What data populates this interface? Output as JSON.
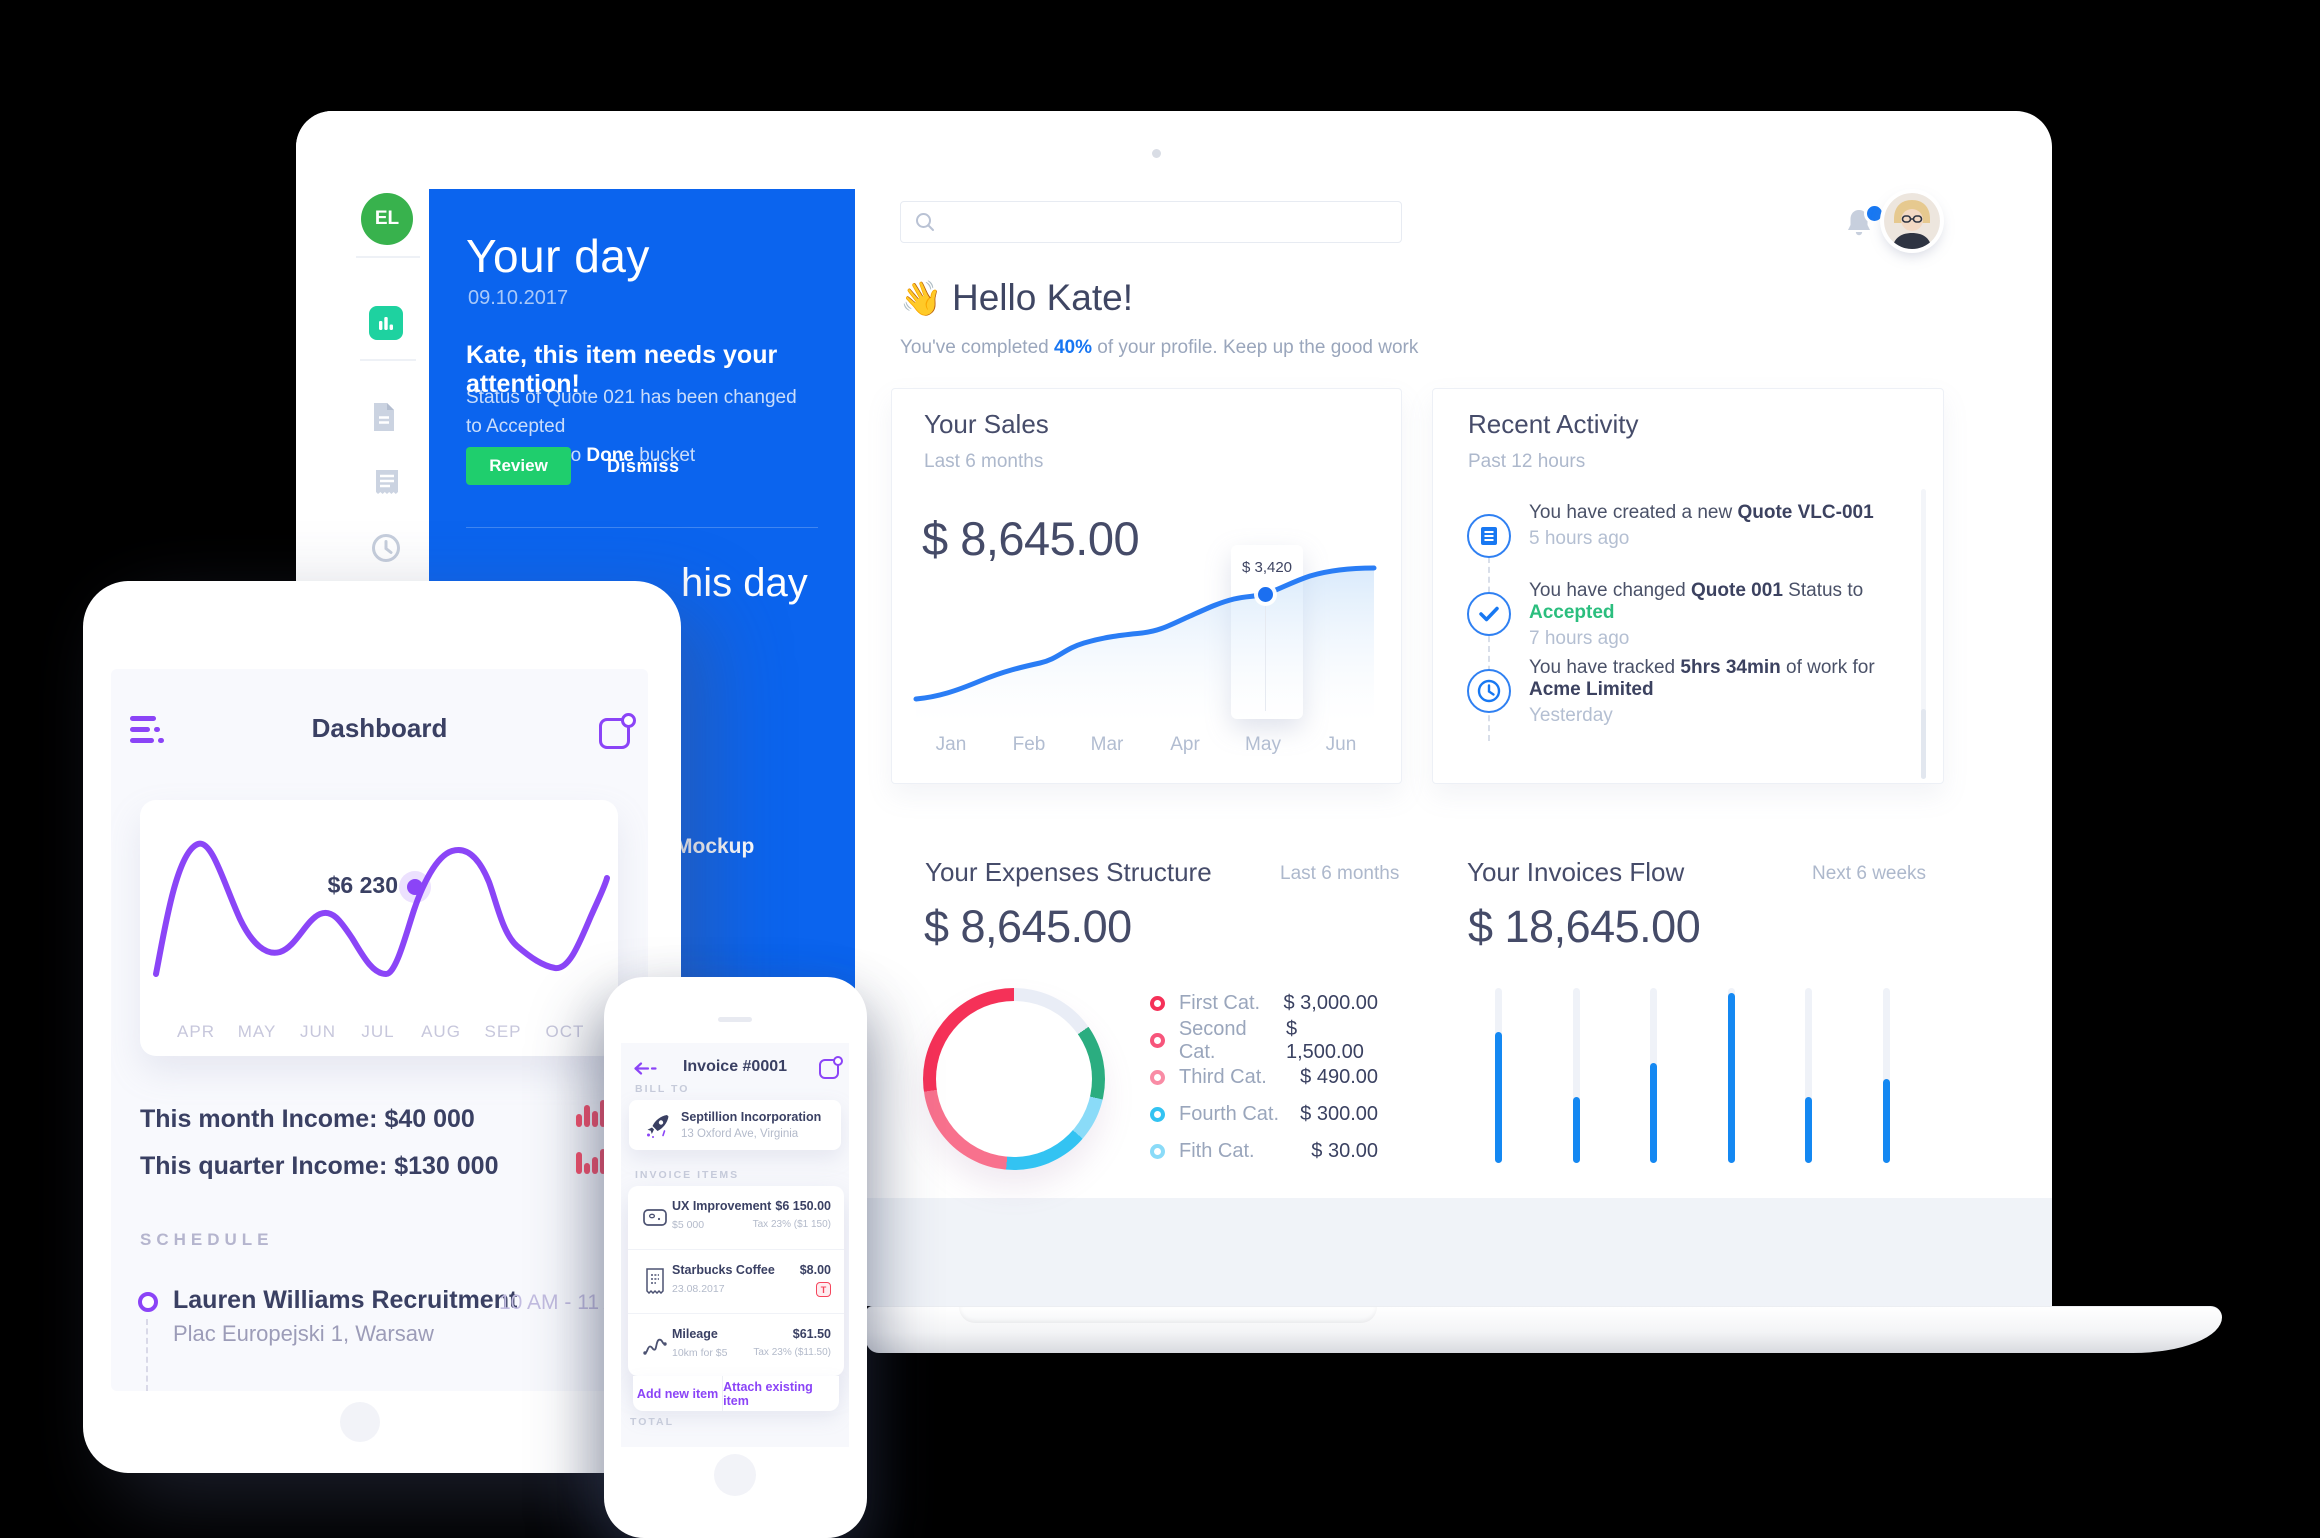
{
  "laptop": {
    "sidebar": {
      "avatar_initials": "EL"
    },
    "panel": {
      "title": "Your day",
      "date": "09.10.2017",
      "alert_title": "Kate, this item needs your attention!",
      "alert_line1": "Status of Quote 021 has been changed to Accepted",
      "alert_line2_prefix": "and moved to ",
      "alert_line2_bold": "Done",
      "alert_line2_suffix": " bucket",
      "review_label": "Review",
      "dismiss_label": "Dismiss",
      "clipped_heading": "his day",
      "clipped_nav_item": "Mockup"
    },
    "greeting": {
      "emoji": "👋",
      "title": "Hello Kate!",
      "sub_prefix": "You've completed ",
      "sub_percent": "40%",
      "sub_suffix": " of your profile. Keep up the good work"
    },
    "sales": {
      "title": "Your Sales",
      "period": "Last 6 months",
      "amount": "$ 8,645.00",
      "tooltip_value": "$ 3,420",
      "months": [
        "Jan",
        "Feb",
        "Mar",
        "Apr",
        "May",
        "Jun"
      ]
    },
    "activity": {
      "title": "Recent Activity",
      "period": "Past 12 hours",
      "items": [
        {
          "prefix": "You have created a new ",
          "bold": "Quote VLC-001",
          "time": "5 hours ago"
        },
        {
          "prefix": "You have changed ",
          "bold": "Quote 001",
          "mid": " Status to ",
          "accent": "Accepted",
          "time": "7 hours ago"
        },
        {
          "prefix": "You have tracked ",
          "bold": "5hrs 34min",
          "suffix": " of work for",
          "line2": "Acme Limited",
          "time": "Yesterday"
        }
      ]
    },
    "expenses": {
      "title": "Your Expenses Structure",
      "period": "Last 6 months",
      "amount": "$ 8,645.00",
      "legend": [
        {
          "label": "First Cat.",
          "value": "$ 3,000.00",
          "color": "#F53158"
        },
        {
          "label": "Second Cat.",
          "value": "$ 1,500.00",
          "color": "#F7557B"
        },
        {
          "label": "Third Cat.",
          "value": "$ 490.00",
          "color": "#F98CA5"
        },
        {
          "label": "Fourth  Cat.",
          "value": "$ 300.00",
          "color": "#33C3F2"
        },
        {
          "label": "Fith Cat.",
          "value": "$ 30.00",
          "color": "#8ADBF8"
        }
      ],
      "donut_segments": [
        {
          "color": "#E9EDF6",
          "to": 55
        },
        {
          "color": "#2BAD80",
          "to": 103
        },
        {
          "color": "#8ADBF8",
          "to": 131
        },
        {
          "color": "#33C3F2",
          "to": 185
        },
        {
          "color": "#F8718D",
          "to": 262
        },
        {
          "color": "#F53158",
          "to": 360
        }
      ]
    },
    "invoices": {
      "title": "Your Invoices Flow",
      "period": "Next 6 weeks",
      "amount": "$ 18,645.00",
      "bars_percent": [
        75,
        38,
        57,
        97,
        38,
        48
      ]
    }
  },
  "tablet": {
    "title": "Dashboard",
    "chart": {
      "tooltip_value": "$6 230",
      "months": [
        "APR",
        "MAY",
        "JUN",
        "JUL",
        "AUG",
        "SEP",
        "OCT"
      ]
    },
    "stats": [
      {
        "label": "This month Income: $40 000"
      },
      {
        "label": "This quarter Income: $130 000"
      }
    ],
    "schedule_heading": "SCHEDULE",
    "event": {
      "title": "Lauren Williams Recruitment",
      "location": "Plac Europejski 1, Warsaw",
      "time": "10 AM - 11 AM"
    }
  },
  "phone": {
    "title": "Invoice #0001",
    "bill_to_label": "BILL TO",
    "company": {
      "name": "Septillion Incorporation",
      "address": "13 Oxford Ave, Virginia"
    },
    "invoice_items_label": "INVOICE ITEMS",
    "items": [
      {
        "name": "UX Improvement",
        "sub": "$5 000",
        "value": "$6 150.00",
        "note": "Tax 23% ($1 150)"
      },
      {
        "name": "Starbucks Coffee",
        "sub": "23.08.2017",
        "value": "$8.00",
        "note_badge": "T"
      },
      {
        "name": "Mileage",
        "sub": "10km for $5",
        "value": "$61.50",
        "note": "Tax 23% ($11.50)"
      }
    ],
    "actions": {
      "add": "Add new item",
      "attach": "Attach existing item"
    },
    "total_label": "TOTAL"
  }
}
